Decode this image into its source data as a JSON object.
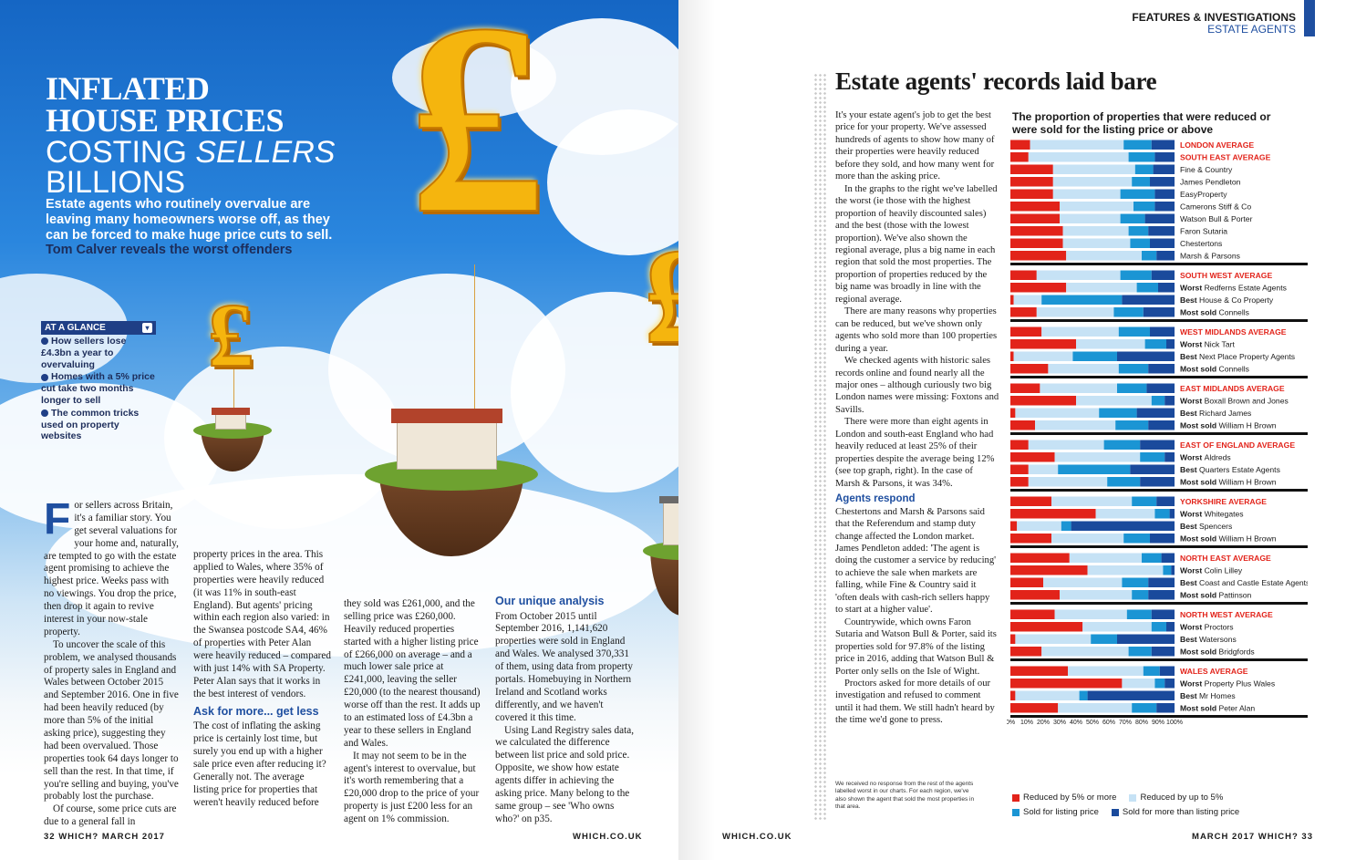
{
  "left_page": {
    "headline": {
      "line1": "INFLATED",
      "line2": "HOUSE PRICES",
      "line3a": "COSTING ",
      "line3b": "SELLERS",
      "line4": "BILLIONS"
    },
    "standfirst": "Estate agents who routinely overvalue are leaving many homeowners worse off, as they can be forced to make huge price cuts to sell.",
    "byline_name": "Tom Calver",
    "byline_rest": " reveals the worst offenders",
    "at_a_glance": {
      "title": "AT A GLANCE",
      "items": [
        "How sellers lose £4.3bn a year to overvaluing",
        "Homes with a 5% price cut take two months longer to sell",
        "The common tricks used on property websites"
      ]
    },
    "balloon_symbol": "£",
    "col1": {
      "dropcap": "F",
      "p1": "or sellers across Britain, it's a familiar story. You get several valuations for your home and, naturally, are tempted to go with the estate agent promising to achieve the highest price. Weeks pass with no viewings. You drop the price, then drop it again to revive interest in your now-stale property.",
      "p2": "To uncover the scale of this problem, we analysed thousands of property sales in England and Wales between October 2015 and September 2016. One in five had been heavily reduced (by more than 5% of the initial asking price), suggesting they had been overvalued. Those properties took 64 days longer to sell than the rest. In that time, if you're selling and buying, you've probably lost the purchase.",
      "p3": "Of course, some price cuts are due to a general fall in"
    },
    "col2": {
      "p1": "property prices in the area. This applied to Wales, where 35% of properties were heavily reduced (it was 11% in south-east England). But agents' pricing within each region also varied: in the Swansea postcode SA4, 46% of properties with Peter Alan were heavily reduced – compared with just 14% with SA Property. Peter Alan says that it works in the best interest of vendors.",
      "subhead": "Ask for more... get less",
      "p2": "The cost of inflating the asking price is certainly lost time, but surely you end up with a higher sale price even after reducing it? Generally not. The average listing price for properties that weren't heavily reduced before"
    },
    "col3": {
      "p1": "they sold was £261,000, and the selling price was £260,000. Heavily reduced properties started with a higher listing price of £266,000 on average – and a much lower sale price at £241,000, leaving the seller £20,000 (to the nearest thousand) worse off than the rest. It adds up to an estimated loss of £4.3bn a year to these sellers in England and Wales.",
      "p2": "It may not seem to be in the agent's interest to overvalue, but it's worth remembering that a £20,000 drop to the price of your property is just £200 less for an agent on 1% commission."
    },
    "col4": {
      "subhead": "Our unique analysis",
      "p1": "From October 2015 until September 2016, 1,141,620 properties were sold in England and Wales. We analysed 370,331 of them, using data from property portals. Homebuying in Northern Ireland and Scotland works differently, and we haven't covered it this time.",
      "p2": "Using Land Registry sales data, we calculated the difference between list price and sold price. Opposite, we show how estate agents differ in achieving the asking price. Many belong to the same group – see 'Who owns who?' on p35."
    },
    "folio_left": "32  WHICH?  MARCH 2017",
    "folio_url": "WHICH.CO.UK"
  },
  "right_page": {
    "section": "FEATURES & INVESTIGATIONS",
    "subsection": "ESTATE AGENTS",
    "title": "Estate agents' records laid bare",
    "body": {
      "p1": "It's your estate agent's job to get the best price for your property. We've assessed hundreds of agents to show how many of their properties were heavily reduced before they sold, and how many went for more than the asking price.",
      "p2": "In the graphs to the right we've labelled the worst (ie those with the highest proportion of heavily discounted sales) and the best (those with the lowest proportion). We've also shown the regional average, plus a big name in each region that sold the most properties. The proportion of properties reduced by the big name was broadly in line with the regional average.",
      "p3": "There are many reasons why properties can be reduced, but we've shown only agents who sold more than 100 properties during a year.",
      "p4": "We checked agents with historic sales records online and found nearly all the major ones – although curiously two big London names were missing: Foxtons and Savills.",
      "p5": "There were more than eight agents in London and south-east England who had heavily reduced at least 25% of their properties despite the average being 12% (see top graph, right). In the case of Marsh & Parsons, it was 34%.",
      "subhead": "Agents respond",
      "p6": "Chestertons and Marsh & Parsons said that the Referendum and stamp duty change affected the London market. James Pendleton added: 'The agent is doing the customer a service by reducing' to achieve the sale when markets are falling, while Fine & Country said it 'often deals with cash-rich sellers happy to start at a higher value'.",
      "p7": "Countrywide, which owns Faron Sutaria and Watson Bull & Porter, said its properties sold for 97.8% of the listing price in 2016, adding that Watson Bull & Porter only sells on the Isle of Wight.",
      "p8": "Proctors asked for more details of our investigation and refused to comment until it had them. We still hadn't heard by the time we'd gone to press."
    },
    "note": "We received no response from the rest of the agents labelled worst in our charts. For each region, we've also shown the agent that sold the most properties in that area.",
    "folio_url": "WHICH.CO.UK",
    "folio_right": "MARCH 2017  WHICH?  33"
  },
  "chart_data": {
    "type": "bar",
    "orientation": "horizontal-stacked-100",
    "title": "The proportion of properties that were reduced or were sold for the listing price or above",
    "x_ticks": [
      "0%",
      "10%",
      "20%",
      "30%",
      "40%",
      "50%",
      "60%",
      "70%",
      "80%",
      "90%",
      "100%"
    ],
    "xlim": [
      0,
      100
    ],
    "series_names": [
      "Reduced by 5% or more",
      "Reduced by up to 5%",
      "Sold for listing price",
      "Sold for more than listing price"
    ],
    "colors": {
      "reduced_5_plus": "#e2231a",
      "reduced_up_to_5": "#c6e2f5",
      "listing_price": "#1b95d4",
      "more_than_listing": "#1a4a9c",
      "region_label": "#e2231a",
      "separator": "#111111"
    },
    "groups": [
      {
        "region": "London & South East",
        "rows": [
          {
            "prefix": "",
            "name": "LONDON AVERAGE",
            "is_average": true,
            "values": [
              12,
              57,
              17,
              14
            ]
          },
          {
            "prefix": "",
            "name": "SOUTH EAST AVERAGE",
            "is_average": true,
            "values": [
              11,
              61,
              16,
              12
            ]
          },
          {
            "prefix": "",
            "name": "Fine & Country",
            "is_average": false,
            "values": [
              26,
              50,
              11,
              13
            ]
          },
          {
            "prefix": "",
            "name": "James Pendleton",
            "is_average": false,
            "values": [
              26,
              48,
              11,
              15
            ]
          },
          {
            "prefix": "",
            "name": "EasyProperty",
            "is_average": false,
            "values": [
              26,
              41,
              21,
              12
            ]
          },
          {
            "prefix": "",
            "name": "Camerons Stiff & Co",
            "is_average": false,
            "values": [
              30,
              45,
              13,
              12
            ]
          },
          {
            "prefix": "",
            "name": "Watson Bull & Porter",
            "is_average": false,
            "values": [
              30,
              37,
              15,
              18
            ]
          },
          {
            "prefix": "",
            "name": "Faron Sutaria",
            "is_average": false,
            "values": [
              32,
              40,
              12,
              16
            ]
          },
          {
            "prefix": "",
            "name": "Chestertons",
            "is_average": false,
            "values": [
              32,
              41,
              12,
              15
            ]
          },
          {
            "prefix": "",
            "name": "Marsh & Parsons",
            "is_average": false,
            "values": [
              34,
              46,
              9,
              11
            ]
          }
        ]
      },
      {
        "region": "South West",
        "rows": [
          {
            "prefix": "",
            "name": "SOUTH WEST AVERAGE",
            "is_average": true,
            "values": [
              16,
              51,
              19,
              14
            ]
          },
          {
            "prefix": "Worst",
            "name": "Redferns Estate Agents",
            "is_average": false,
            "values": [
              34,
              43,
              13,
              10
            ]
          },
          {
            "prefix": "Best",
            "name": "House & Co Property",
            "is_average": false,
            "values": [
              2,
              17,
              49,
              32
            ]
          },
          {
            "prefix": "Most sold",
            "name": "Connells",
            "is_average": false,
            "values": [
              16,
              47,
              18,
              19
            ]
          }
        ]
      },
      {
        "region": "West Midlands",
        "rows": [
          {
            "prefix": "",
            "name": "WEST MIDLANDS AVERAGE",
            "is_average": true,
            "values": [
              19,
              47,
              19,
              15
            ]
          },
          {
            "prefix": "Worst",
            "name": "Nick Tart",
            "is_average": false,
            "values": [
              40,
              42,
              13,
              5
            ]
          },
          {
            "prefix": "Best",
            "name": "Next Place Property Agents",
            "is_average": false,
            "values": [
              2,
              36,
              27,
              35
            ]
          },
          {
            "prefix": "Most sold",
            "name": "Connells",
            "is_average": false,
            "values": [
              23,
              43,
              18,
              16
            ]
          }
        ]
      },
      {
        "region": "East Midlands",
        "rows": [
          {
            "prefix": "",
            "name": "EAST MIDLANDS AVERAGE",
            "is_average": true,
            "values": [
              18,
              47,
              18,
              17
            ]
          },
          {
            "prefix": "Worst",
            "name": "Boxall Brown and Jones",
            "is_average": false,
            "values": [
              40,
              46,
              8,
              6
            ]
          },
          {
            "prefix": "Best",
            "name": "Richard James",
            "is_average": false,
            "values": [
              3,
              51,
              23,
              23
            ]
          },
          {
            "prefix": "Most sold",
            "name": "William H Brown",
            "is_average": false,
            "values": [
              15,
              49,
              20,
              16
            ]
          }
        ]
      },
      {
        "region": "East of England",
        "rows": [
          {
            "prefix": "",
            "name": "EAST OF ENGLAND AVERAGE",
            "is_average": true,
            "values": [
              11,
              46,
              22,
              21
            ]
          },
          {
            "prefix": "Worst",
            "name": "Aldreds",
            "is_average": false,
            "values": [
              27,
              52,
              15,
              6
            ]
          },
          {
            "prefix": "Best",
            "name": "Quarters Estate Agents",
            "is_average": false,
            "values": [
              11,
              18,
              44,
              27
            ]
          },
          {
            "prefix": "Most sold",
            "name": "William H Brown",
            "is_average": false,
            "values": [
              11,
              48,
              20,
              21
            ]
          }
        ]
      },
      {
        "region": "Yorkshire",
        "rows": [
          {
            "prefix": "",
            "name": "YORKSHIRE AVERAGE",
            "is_average": true,
            "values": [
              25,
              49,
              15,
              11
            ]
          },
          {
            "prefix": "Worst",
            "name": "Whitegates",
            "is_average": false,
            "values": [
              52,
              36,
              9,
              3
            ]
          },
          {
            "prefix": "Best",
            "name": "Spencers",
            "is_average": false,
            "values": [
              4,
              27,
              6,
              63
            ]
          },
          {
            "prefix": "Most sold",
            "name": "William H Brown",
            "is_average": false,
            "values": [
              25,
              44,
              16,
              15
            ]
          }
        ]
      },
      {
        "region": "North East",
        "rows": [
          {
            "prefix": "",
            "name": "NORTH EAST AVERAGE",
            "is_average": true,
            "values": [
              36,
              44,
              12,
              8
            ]
          },
          {
            "prefix": "Worst",
            "name": "Colin Lilley",
            "is_average": false,
            "values": [
              47,
              46,
              5,
              2
            ]
          },
          {
            "prefix": "Best",
            "name": "Coast and Castle Estate Agents",
            "is_average": false,
            "values": [
              20,
              48,
              16,
              16
            ]
          },
          {
            "prefix": "Most sold",
            "name": "Pattinson",
            "is_average": false,
            "values": [
              30,
              44,
              10,
              16
            ]
          }
        ]
      },
      {
        "region": "North West",
        "rows": [
          {
            "prefix": "",
            "name": "NORTH WEST AVERAGE",
            "is_average": true,
            "values": [
              27,
              44,
              15,
              14
            ]
          },
          {
            "prefix": "Worst",
            "name": "Proctors",
            "is_average": false,
            "values": [
              44,
              42,
              9,
              5
            ]
          },
          {
            "prefix": "Best",
            "name": "Watersons",
            "is_average": false,
            "values": [
              3,
              46,
              16,
              35
            ]
          },
          {
            "prefix": "Most sold",
            "name": "Bridgfords",
            "is_average": false,
            "values": [
              19,
              53,
              14,
              14
            ]
          }
        ]
      },
      {
        "region": "Wales",
        "rows": [
          {
            "prefix": "",
            "name": "WALES AVERAGE",
            "is_average": true,
            "values": [
              35,
              46,
              10,
              9
            ]
          },
          {
            "prefix": "Worst",
            "name": "Property Plus Wales",
            "is_average": false,
            "values": [
              68,
              20,
              6,
              6
            ]
          },
          {
            "prefix": "Best",
            "name": "Mr Homes",
            "is_average": false,
            "values": [
              3,
              39,
              5,
              53
            ]
          },
          {
            "prefix": "Most sold",
            "name": "Peter Alan",
            "is_average": false,
            "values": [
              29,
              45,
              15,
              11
            ]
          }
        ]
      }
    ]
  }
}
